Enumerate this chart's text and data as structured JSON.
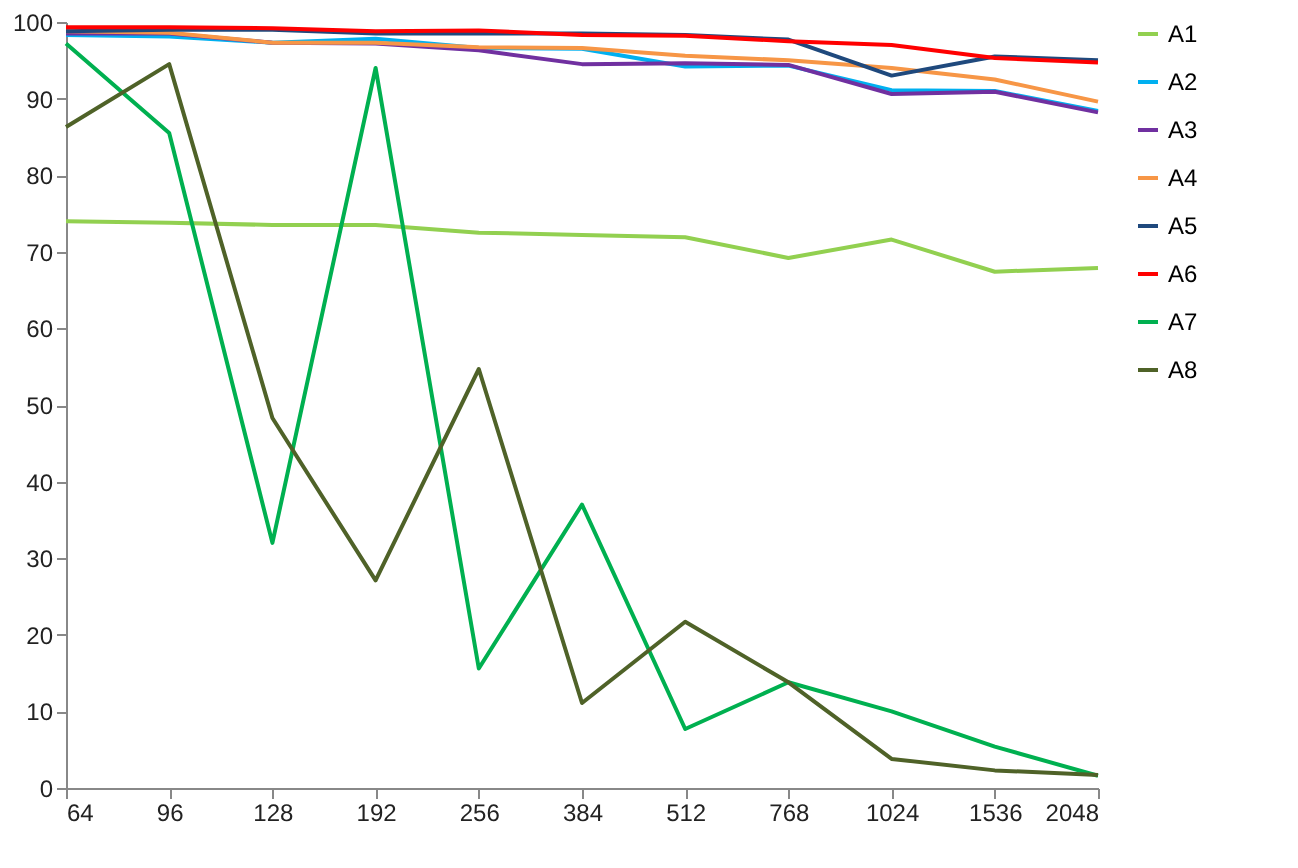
{
  "chart_data": {
    "type": "line",
    "categories": [
      "64",
      "96",
      "128",
      "192",
      "256",
      "384",
      "512",
      "768",
      "1024",
      "1536",
      "2048"
    ],
    "ylim": [
      0,
      100
    ],
    "yticks": [
      0,
      10,
      20,
      30,
      40,
      50,
      60,
      70,
      80,
      90,
      100
    ],
    "grid": false,
    "legend": "right",
    "marker": "none",
    "line_style": "solid",
    "series": [
      {
        "name": "A1",
        "color": "#92d050",
        "values": [
          74,
          73.8,
          73.5,
          73.5,
          72.5,
          72.2,
          71.9,
          69.2,
          71.6,
          67.4,
          67.9
        ]
      },
      {
        "name": "A2",
        "color": "#00b0f0",
        "values": [
          98.3,
          98.1,
          97.3,
          97.8,
          96.6,
          96.5,
          94.2,
          94.3,
          91.1,
          91,
          88.4
        ]
      },
      {
        "name": "A3",
        "color": "#7030a0",
        "values": [
          98.5,
          98.5,
          97.3,
          97.2,
          96.3,
          94.5,
          94.6,
          94.4,
          90.6,
          90.9,
          88.2
        ]
      },
      {
        "name": "A4",
        "color": "#f79646",
        "values": [
          98.8,
          98.6,
          97.3,
          97.3,
          96.7,
          96.6,
          95.6,
          95,
          94,
          92.5,
          89.6
        ]
      },
      {
        "name": "A5",
        "color": "#1f497d",
        "values": [
          98.8,
          99,
          99,
          98.5,
          98.5,
          98.5,
          98.3,
          97.7,
          93,
          95.5,
          95
        ]
      },
      {
        "name": "A6",
        "color": "#ff0000",
        "values": [
          99.3,
          99.3,
          99.2,
          98.8,
          98.9,
          98.3,
          98.2,
          97.5,
          97,
          95.3,
          94.7
        ]
      },
      {
        "name": "A7",
        "color": "#00b050",
        "values": [
          97.2,
          85.5,
          32,
          94,
          15.6,
          37,
          7.7,
          13.8,
          10,
          5.4,
          1.6
        ]
      },
      {
        "name": "A8",
        "color": "#4f6228",
        "values": [
          86.3,
          94.5,
          48.3,
          27.1,
          54.7,
          11.1,
          21.7,
          13.8,
          3.8,
          2.3,
          1.7
        ]
      }
    ]
  }
}
